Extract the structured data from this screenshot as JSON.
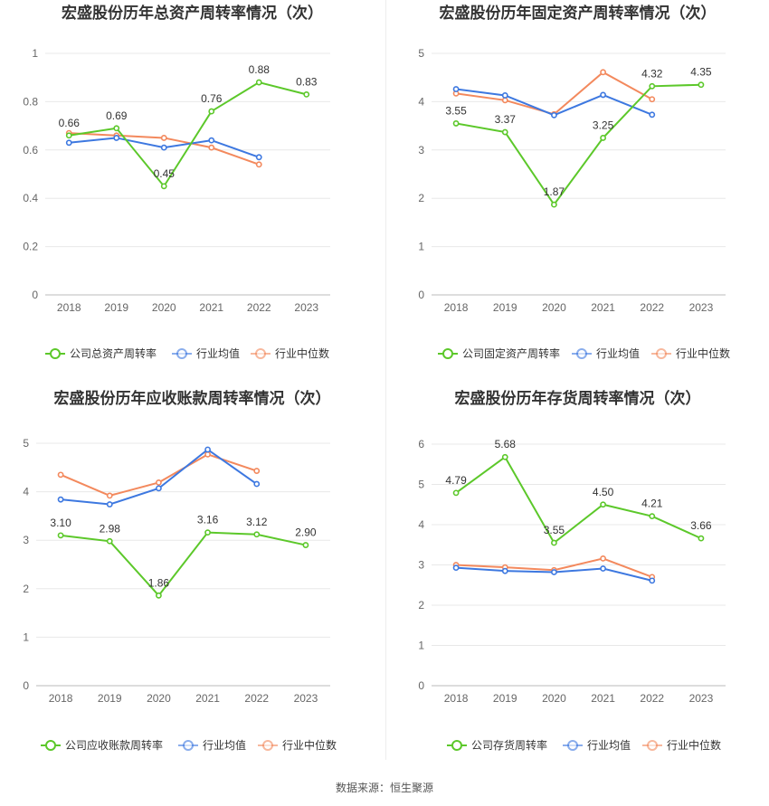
{
  "source": "数据来源：恒生聚源",
  "legend_common": [
    "行业均值",
    "行业中位数"
  ],
  "colors": {
    "company": "#5cc82a",
    "mean": "#3d78e0",
    "median": "#f3895d"
  },
  "chart_data": [
    {
      "type": "line",
      "title": "宏盛股份历年总资产周转率情况（次）",
      "categories": [
        "2018",
        "2019",
        "2020",
        "2021",
        "2022",
        "2023"
      ],
      "ylim": [
        0,
        1
      ],
      "yticks": [
        "0",
        "0.2",
        "0.4",
        "0.6",
        "0.8",
        "1"
      ],
      "legend": "bottom",
      "series": [
        {
          "name": "公司总资产周转率",
          "values": [
            0.66,
            0.69,
            0.45,
            0.76,
            0.88,
            0.83
          ],
          "labels": [
            "0.66",
            "0.69",
            "0.45",
            "0.76",
            "0.88",
            "0.83"
          ]
        },
        {
          "name": "行业均值",
          "values": [
            0.63,
            0.65,
            0.61,
            0.64,
            0.57,
            null
          ]
        },
        {
          "name": "行业中位数",
          "values": [
            0.67,
            0.66,
            0.65,
            0.61,
            0.54,
            null
          ]
        }
      ]
    },
    {
      "type": "line",
      "title": "宏盛股份历年固定资产周转率情况（次）",
      "categories": [
        "2018",
        "2019",
        "2020",
        "2021",
        "2022",
        "2023"
      ],
      "ylim": [
        0,
        5
      ],
      "yticks": [
        "0",
        "1",
        "2",
        "3",
        "4",
        "5"
      ],
      "legend": "bottom",
      "series": [
        {
          "name": "公司固定资产周转率",
          "values": [
            3.55,
            3.37,
            1.87,
            3.25,
            4.32,
            4.35
          ],
          "labels": [
            "3.55",
            "3.37",
            "1.87",
            "3.25",
            "4.32",
            "4.35"
          ]
        },
        {
          "name": "行业均值",
          "values": [
            4.26,
            4.13,
            3.72,
            4.14,
            3.73,
            null
          ]
        },
        {
          "name": "行业中位数",
          "values": [
            4.17,
            4.03,
            3.74,
            4.61,
            4.05,
            null
          ]
        }
      ]
    },
    {
      "type": "line",
      "title": "宏盛股份历年应收账款周转率情况（次）",
      "categories": [
        "2018",
        "2019",
        "2020",
        "2021",
        "2022",
        "2023"
      ],
      "ylim": [
        0,
        5
      ],
      "yticks": [
        "0",
        "1",
        "2",
        "3",
        "4",
        "5"
      ],
      "legend": "bottom",
      "series": [
        {
          "name": "公司应收账款周转率",
          "values": [
            3.1,
            2.98,
            1.86,
            3.16,
            3.12,
            2.9
          ],
          "labels": [
            "3.10",
            "2.98",
            "1.86",
            "3.16",
            "3.12",
            "2.90"
          ]
        },
        {
          "name": "行业均值",
          "values": [
            3.84,
            3.74,
            4.07,
            4.87,
            4.16,
            null
          ]
        },
        {
          "name": "行业中位数",
          "values": [
            4.35,
            3.92,
            4.19,
            4.77,
            4.43,
            null
          ]
        }
      ]
    },
    {
      "type": "line",
      "title": "宏盛股份历年存货周转率情况（次）",
      "categories": [
        "2018",
        "2019",
        "2020",
        "2021",
        "2022",
        "2023"
      ],
      "ylim": [
        0,
        6
      ],
      "yticks": [
        "0",
        "1",
        "2",
        "3",
        "4",
        "5",
        "6"
      ],
      "legend": "bottom",
      "series": [
        {
          "name": "公司存货周转率",
          "values": [
            4.79,
            5.68,
            3.55,
            4.5,
            4.21,
            3.66
          ],
          "labels": [
            "4.79",
            "5.68",
            "3.55",
            "4.50",
            "4.21",
            "3.66"
          ]
        },
        {
          "name": "行业均值",
          "values": [
            2.93,
            2.85,
            2.82,
            2.91,
            2.61,
            null
          ]
        },
        {
          "name": "行业中位数",
          "values": [
            3.0,
            2.94,
            2.87,
            3.16,
            2.7,
            null
          ]
        }
      ]
    }
  ]
}
